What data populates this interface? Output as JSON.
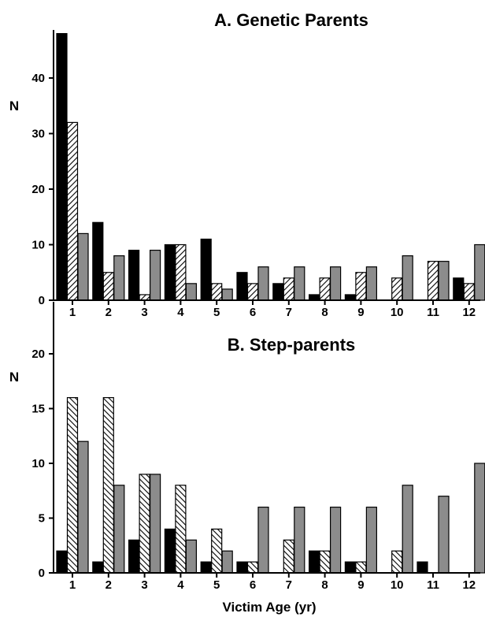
{
  "chart_data": [
    {
      "type": "bar",
      "title": "A. Genetic Parents",
      "ylabel": "N",
      "xlabel": "",
      "ylim": [
        0,
        48
      ],
      "yticks": [
        0,
        10,
        20,
        30,
        40
      ],
      "categories": [
        "1",
        "2",
        "3",
        "4",
        "5",
        "6",
        "7",
        "8",
        "9",
        "10",
        "11",
        "12"
      ],
      "series": [
        {
          "style": "solid-black",
          "color": "#000000",
          "values": [
            48,
            14,
            9,
            10,
            11,
            5,
            3,
            1,
            1,
            0,
            0,
            4
          ]
        },
        {
          "style": "hatched",
          "color": "#ffffff",
          "values": [
            32,
            5,
            1,
            10,
            3,
            3,
            4,
            4,
            5,
            4,
            7,
            3
          ]
        },
        {
          "style": "solid-gray",
          "color": "#8c8c8c",
          "values": [
            12,
            8,
            9,
            3,
            2,
            6,
            6,
            6,
            6,
            8,
            7,
            10
          ]
        }
      ],
      "legend": "none"
    },
    {
      "type": "bar",
      "title": "B. Step-parents",
      "ylabel": "N",
      "xlabel": "Victim Age (yr)",
      "ylim": [
        0,
        20
      ],
      "yticks": [
        0,
        5,
        10,
        15,
        20
      ],
      "categories": [
        "1",
        "2",
        "3",
        "4",
        "5",
        "6",
        "7",
        "8",
        "9",
        "10",
        "11",
        "12"
      ],
      "series": [
        {
          "style": "solid-black",
          "color": "#000000",
          "values": [
            2,
            1,
            3,
            4,
            1,
            1,
            0,
            2,
            1,
            0,
            1,
            0
          ]
        },
        {
          "style": "hatched",
          "color": "#ffffff",
          "values": [
            16,
            16,
            9,
            8,
            4,
            1,
            3,
            2,
            1,
            2,
            0,
            0
          ]
        },
        {
          "style": "solid-gray",
          "color": "#8c8c8c",
          "values": [
            12,
            8,
            9,
            3,
            2,
            6,
            6,
            6,
            6,
            8,
            7,
            10
          ]
        }
      ],
      "legend": "none"
    }
  ]
}
